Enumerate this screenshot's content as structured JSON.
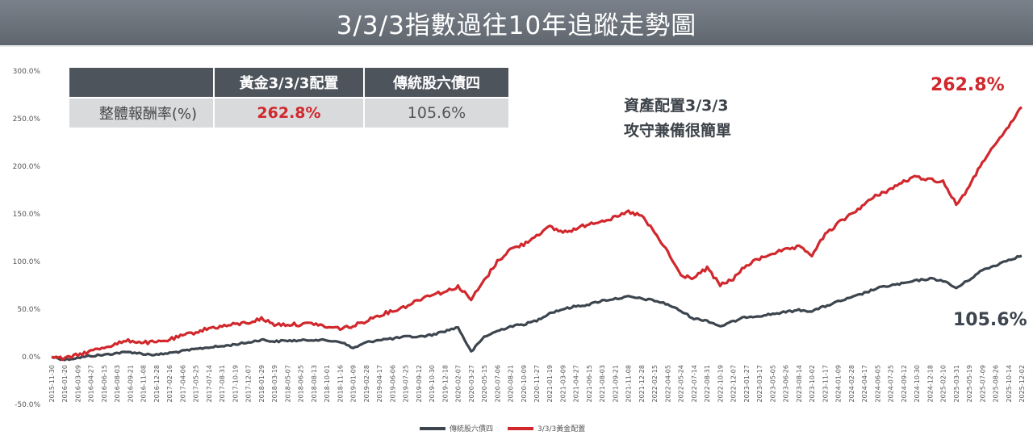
{
  "title": "3/3/3指數過往10年追蹤走勢圖",
  "table": {
    "col1": "黃金3/3/3配置",
    "col2": "傳統股六債四",
    "row_label": "整體報酬率(%)",
    "gold_value": "262.8%",
    "trad_value": "105.6%"
  },
  "annotation": {
    "line1": "資產配置3/3/3",
    "line2": "攻守兼備很簡單"
  },
  "end_labels": {
    "gold": "262.8%",
    "trad": "105.6%"
  },
  "colors": {
    "gold": "#d0282d",
    "trad": "#3d454f",
    "title_bg": "#6b7279"
  },
  "chart_data": {
    "type": "line",
    "ylim": [
      -50,
      300
    ],
    "y_ticks": [
      300,
      250,
      200,
      150,
      100,
      50,
      0,
      -50
    ],
    "y_tick_labels": [
      "300.0%",
      "250.0%",
      "200.0%",
      "150.0%",
      "100.0%",
      "50.0%",
      "0.0%",
      "-50.0%"
    ],
    "grid": false,
    "legend_position": "bottom",
    "x": [
      "2015-11-30",
      "2016-01-20",
      "2016-03-09",
      "2016-04-27",
      "2016-06-15",
      "2016-08-03",
      "2016-09-21",
      "2016-11-08",
      "2016-12-28",
      "2017-02-16",
      "2017-04-06",
      "2017-05-25",
      "2017-07-14",
      "2017-08-31",
      "2017-10-19",
      "2017-12-07",
      "2018-01-29",
      "2018-03-19",
      "2018-05-07",
      "2018-06-25",
      "2018-08-13",
      "2018-10-01",
      "2018-11-16",
      "2019-01-09",
      "2019-02-28",
      "2019-04-17",
      "2019-06-06",
      "2019-07-25",
      "2019-09-12",
      "2019-10-30",
      "2019-12-18",
      "2020-02-07",
      "2020-03-27",
      "2020-05-15",
      "2020-07-06",
      "2020-08-21",
      "2020-10-09",
      "2020-11-27",
      "2021-01-19",
      "2021-03-09",
      "2021-04-27",
      "2021-06-15",
      "2021-08-03",
      "2021-09-21",
      "2021-11-08",
      "2021-12-28",
      "2022-02-15",
      "2022-04-05",
      "2022-05-24",
      "2022-07-14",
      "2022-08-31",
      "2022-10-19",
      "2022-12-07",
      "2023-01-27",
      "2023-03-17",
      "2023-05-05",
      "2023-06-26",
      "2023-08-14",
      "2023-10-02",
      "2023-11-17",
      "2024-01-09",
      "2024-02-28",
      "2024-04-17",
      "2024-06-05",
      "2024-07-25",
      "2024-09-12",
      "2024-10-30",
      "2024-12-18",
      "2025-02-10",
      "2025-03-31",
      "2025-05-19",
      "2025-07-09",
      "2025-08-26",
      "2025-10-14",
      "2025-12-02"
    ],
    "series": [
      {
        "name": "傳統股六債四",
        "color": "#3d454f",
        "values": [
          0,
          -3,
          -1,
          1,
          2,
          4,
          5,
          3,
          2,
          4,
          6,
          8,
          10,
          11,
          13,
          15,
          18,
          16,
          17,
          17,
          18,
          17,
          16,
          9,
          15,
          18,
          19,
          21,
          21,
          23,
          27,
          31,
          5,
          21,
          27,
          32,
          34,
          38,
          46,
          50,
          53,
          55,
          59,
          61,
          63,
          61,
          59,
          55,
          48,
          40,
          38,
          32,
          37,
          42,
          43,
          45,
          47,
          49,
          48,
          53,
          58,
          62,
          67,
          72,
          75,
          77,
          80,
          82,
          80,
          72,
          81,
          91,
          96,
          102,
          106
        ]
      },
      {
        "name": "3/3/3黃金配置",
        "color": "#d0282d",
        "values": [
          0,
          -2,
          2,
          6,
          10,
          14,
          17,
          15,
          15,
          18,
          22,
          26,
          30,
          32,
          34,
          36,
          40,
          34,
          34,
          34,
          35,
          31,
          30,
          32,
          38,
          44,
          48,
          53,
          60,
          66,
          68,
          74,
          60,
          80,
          100,
          113,
          118,
          128,
          136,
          131,
          134,
          140,
          143,
          146,
          152,
          148,
          130,
          110,
          85,
          83,
          93,
          75,
          82,
          96,
          103,
          109,
          112,
          115,
          107,
          128,
          140,
          150,
          160,
          170,
          176,
          184,
          189,
          186,
          184,
          160,
          178,
          205,
          222,
          242,
          262
        ]
      }
    ]
  },
  "legend": {
    "trad": "傳統股六債四",
    "gold": "3/3/3黃金配置"
  }
}
